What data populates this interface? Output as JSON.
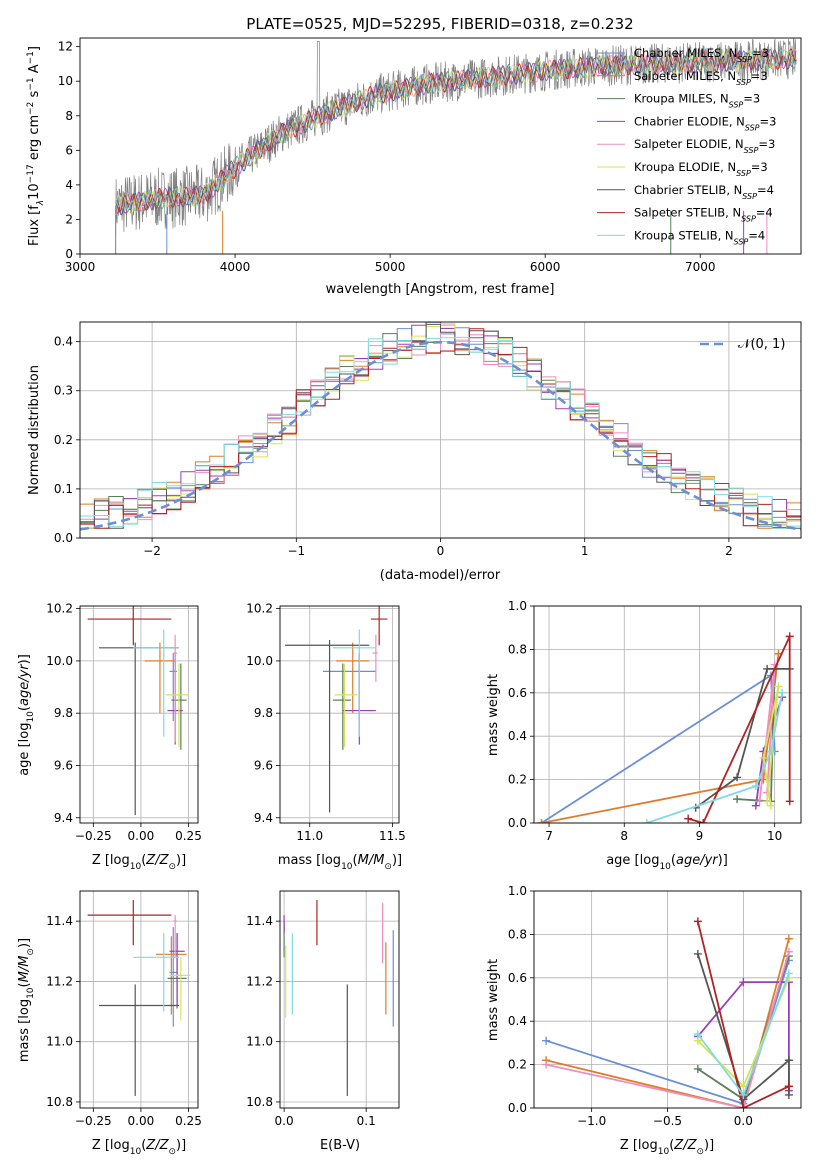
{
  "figure": {
    "title": "PLATE=0525, MJD=52295, FIBERID=0318, z=0.232"
  },
  "colors": [
    "#6a8fd8",
    "#e07b2a",
    "#5b7f5b",
    "#9b3fb4",
    "#ee8ebf",
    "#d6e35a",
    "#555555",
    "#b22222",
    "#7fdbe0"
  ],
  "chart_data": [
    {
      "id": "spectrum",
      "type": "line",
      "title": "PLATE=0525, MJD=52295, FIBERID=0318, z=0.232",
      "xlabel": "wavelength [Angstrom, rest frame]",
      "ylabel": "Flux [f",
      "xlim": [
        3000,
        7650
      ],
      "ylim": [
        0,
        12.5
      ],
      "xticks": [
        "3000",
        "4000",
        "5000",
        "6000",
        "7000"
      ],
      "yticks": [
        "0",
        "2",
        "4",
        "6",
        "8",
        "10",
        "12"
      ],
      "observed_color": "#808080",
      "continuum": {
        "x": [
          3230,
          3500,
          3800,
          4000,
          4300,
          4600,
          4900,
          5200,
          5500,
          5800,
          6100,
          6400,
          6700,
          7000,
          7300,
          7600
        ],
        "y": [
          2.8,
          3.2,
          3.4,
          5.0,
          7.0,
          8.2,
          9.2,
          9.8,
          10.1,
          10.4,
          10.7,
          10.9,
          11.0,
          11.1,
          11.2,
          11.3
        ]
      },
      "legend": [
        {
          "label": "Chabrier MILES, N",
          "sub": "SSP",
          "suffix": "=3"
        },
        {
          "label": "Salpeter MILES, N",
          "sub": "SSP",
          "suffix": "=3"
        },
        {
          "label": "Kroupa MILES, N",
          "sub": "SSP",
          "suffix": "=3"
        },
        {
          "label": "Chabrier ELODIE, N",
          "sub": "SSP",
          "suffix": "=3"
        },
        {
          "label": "Salpeter ELODIE, N",
          "sub": "SSP",
          "suffix": "=3"
        },
        {
          "label": "Kroupa ELODIE, N",
          "sub": "SSP",
          "suffix": "=3"
        },
        {
          "label": "Chabrier STELIB, N",
          "sub": "SSP",
          "suffix": "=4"
        },
        {
          "label": "Salpeter STELIB, N",
          "sub": "SSP",
          "suffix": "=4"
        },
        {
          "label": "Kroupa STELIB, N",
          "sub": "SSP",
          "suffix": "=4"
        }
      ]
    },
    {
      "id": "residuals",
      "type": "histogram",
      "xlabel": "(data-model)/error",
      "ylabel": "Normed distribution",
      "xlim": [
        -2.5,
        2.5
      ],
      "ylim": [
        0,
        0.44
      ],
      "xticks": [
        "−2",
        "−1",
        "0",
        "1",
        "2"
      ],
      "yticks": [
        "0.0",
        "0.1",
        "0.2",
        "0.3",
        "0.4"
      ],
      "bins": 50,
      "legend": "𝒩(0, 1)"
    },
    {
      "id": "age_vs_Z",
      "type": "errorbar",
      "xlabel": "Z [log",
      "ylabel": "age  [log",
      "xlim": [
        -0.32,
        0.3
      ],
      "ylim": [
        9.38,
        10.21
      ],
      "xticks": [
        "−0.25",
        "0.00",
        "0.25"
      ],
      "yticks": [
        "9.4",
        "9.6",
        "9.8",
        "10.0",
        "10.2"
      ],
      "points": [
        {
          "x": 0.17,
          "y": 9.96,
          "xe": [
            0.02,
            0.02
          ],
          "ye": [
            0.19,
            0.07
          ]
        },
        {
          "x": 0.1,
          "y": 10.0,
          "xe": [
            0.08,
            0.08
          ],
          "ye": [
            0.2,
            0.07
          ]
        },
        {
          "x": 0.21,
          "y": 9.85,
          "xe": [
            0.05,
            0.03
          ],
          "ye": [
            0.19,
            0.14
          ]
        },
        {
          "x": 0.18,
          "y": 9.81,
          "xe": [
            0.04,
            0.04
          ],
          "ye": [
            0.13,
            0.22
          ]
        },
        {
          "x": 0.18,
          "y": 10.03,
          "xe": [
            0.01,
            0.01
          ],
          "ye": [
            0.34,
            0.07
          ]
        },
        {
          "x": 0.2,
          "y": 9.87,
          "xe": [
            0.07,
            0.05
          ],
          "ye": [
            0.2,
            0.12
          ]
        },
        {
          "x": -0.03,
          "y": 10.05,
          "xe": [
            0.19,
            0.23
          ],
          "ye": [
            0.64,
            0.02
          ]
        },
        {
          "x": -0.04,
          "y": 10.16,
          "xe": [
            0.24,
            0.2
          ],
          "ye": [
            0.1,
            0.05
          ]
        },
        {
          "x": 0.12,
          "y": 10.05,
          "xe": [
            0.16,
            0.08
          ],
          "ye": [
            0.34,
            0.07
          ]
        }
      ]
    },
    {
      "id": "age_vs_mass",
      "type": "errorbar",
      "xlabel": "mass [log",
      "ylabel": "",
      "xlim": [
        10.82,
        11.54
      ],
      "ylim": [
        9.38,
        10.21
      ],
      "xticks": [
        "11.0",
        "11.5"
      ],
      "yticks": [
        "9.4",
        "9.6",
        "9.8",
        "10.0",
        "10.2"
      ],
      "points": [
        {
          "x": 11.3,
          "y": 9.96,
          "xe": [
            0.22,
            0.1
          ],
          "ye": [
            0.19,
            0.07
          ]
        },
        {
          "x": 11.26,
          "y": 10.0,
          "xe": [
            0.1,
            0.1
          ],
          "ye": [
            0.2,
            0.07
          ]
        },
        {
          "x": 11.2,
          "y": 9.85,
          "xe": [
            0.06,
            0.05
          ],
          "ye": [
            0.19,
            0.14
          ]
        },
        {
          "x": 11.3,
          "y": 9.81,
          "xe": [
            0.1,
            0.1
          ],
          "ye": [
            0.13,
            0.22
          ]
        },
        {
          "x": 11.4,
          "y": 10.03,
          "xe": [
            0.02,
            0.01
          ],
          "ye": [
            0.11,
            0.07
          ]
        },
        {
          "x": 11.21,
          "y": 9.87,
          "xe": [
            0.06,
            0.08
          ],
          "ye": [
            0.2,
            0.12
          ]
        },
        {
          "x": 11.12,
          "y": 10.06,
          "xe": [
            0.27,
            0.24
          ],
          "ye": [
            0.64,
            0.02
          ]
        },
        {
          "x": 11.42,
          "y": 10.16,
          "xe": [
            0.05,
            0.05
          ],
          "ye": [
            0.1,
            0.05
          ]
        },
        {
          "x": 11.3,
          "y": 10.05,
          "xe": [
            0.16,
            0.1
          ],
          "ye": [
            0.34,
            0.07
          ]
        }
      ]
    },
    {
      "id": "weight_vs_age",
      "type": "line",
      "xlabel": "age  [log",
      "ylabel": "mass weight",
      "xlim": [
        6.8,
        10.35
      ],
      "ylim": [
        0,
        1
      ],
      "xticks": [
        "7",
        "8",
        "9",
        "10"
      ],
      "yticks": [
        "0.0",
        "0.2",
        "0.4",
        "0.6",
        "0.8",
        "1.0"
      ],
      "series": [
        {
          "x": [
            6.9,
            9.95,
            10.0
          ],
          "y": [
            0.0,
            0.68,
            0.33
          ]
        },
        {
          "x": [
            6.9,
            9.85,
            10.05
          ],
          "y": [
            0.0,
            0.2,
            0.78
          ]
        },
        {
          "x": [
            9.5,
            9.95,
            10.0
          ],
          "y": [
            0.11,
            0.1,
            0.71
          ]
        },
        {
          "x": [
            9.75,
            9.85,
            10.1
          ],
          "y": [
            0.08,
            0.33,
            0.58
          ]
        },
        {
          "x": [
            9.8,
            10.0,
            9.9
          ],
          "y": [
            0.1,
            0.73,
            0.14
          ]
        },
        {
          "x": [
            9.95,
            9.85,
            10.05,
            9.9
          ],
          "y": [
            0.08,
            0.3,
            0.63,
            0.1
          ]
        },
        {
          "x": [
            8.95,
            9.5,
            9.9,
            10.2
          ],
          "y": [
            0.07,
            0.21,
            0.71,
            0.71
          ]
        },
        {
          "x": [
            8.85,
            9.05,
            10.2,
            10.2
          ],
          "y": [
            0.02,
            0.0,
            0.86,
            0.1
          ]
        },
        {
          "x": [
            8.3,
            9.75,
            9.95,
            10.1
          ],
          "y": [
            0.0,
            0.17,
            0.33,
            0.6
          ]
        }
      ]
    },
    {
      "id": "mass_vs_Z",
      "type": "errorbar",
      "xlabel": "Z [log",
      "ylabel": "mass [log",
      "xlim": [
        -0.32,
        0.3
      ],
      "ylim": [
        10.78,
        11.5
      ],
      "xticks": [
        "−0.25",
        "0.00",
        "0.25"
      ],
      "yticks": [
        "10.8",
        "11.0",
        "11.2",
        "11.4"
      ],
      "points": [
        {
          "x": 0.17,
          "y": 11.23,
          "xe": [
            0.02,
            0.02
          ],
          "ye": [
            0.18,
            0.15
          ]
        },
        {
          "x": 0.16,
          "y": 11.29,
          "xe": [
            0.08,
            0.08
          ],
          "ye": [
            0.2,
            0.06
          ]
        },
        {
          "x": 0.19,
          "y": 11.21,
          "xe": [
            0.05,
            0.05
          ],
          "ye": [
            0.1,
            0.15
          ]
        },
        {
          "x": 0.19,
          "y": 11.3,
          "xe": [
            0.04,
            0.04
          ],
          "ye": [
            0.18,
            0.06
          ]
        },
        {
          "x": 0.18,
          "y": 11.4,
          "xe": [
            0.01,
            0.01
          ],
          "ye": [
            0.12,
            0.02
          ]
        },
        {
          "x": 0.21,
          "y": 11.22,
          "xe": [
            0.06,
            0.05
          ],
          "ye": [
            0.15,
            0.06
          ]
        },
        {
          "x": -0.03,
          "y": 11.12,
          "xe": [
            0.19,
            0.23
          ],
          "ye": [
            0.3,
            0.07
          ]
        },
        {
          "x": -0.04,
          "y": 11.42,
          "xe": [
            0.24,
            0.2
          ],
          "ye": [
            0.1,
            0.05
          ]
        },
        {
          "x": 0.12,
          "y": 11.28,
          "xe": [
            0.16,
            0.08
          ],
          "ye": [
            0.18,
            0.08
          ]
        }
      ]
    },
    {
      "id": "mass_vs_EBV",
      "type": "errorbar",
      "xlabel": "E(B-V)",
      "ylabel": "",
      "xlim": [
        -0.005,
        0.14
      ],
      "ylim": [
        10.78,
        11.5
      ],
      "xticks": [
        "0.0",
        "0.1"
      ],
      "yticks": [
        "10.8",
        "11.0",
        "11.2",
        "11.4"
      ],
      "points": [
        {
          "x": 0.133,
          "y": 11.22,
          "xe": [
            0,
            0
          ],
          "ye": [
            0.17,
            0.15
          ]
        },
        {
          "x": 0.124,
          "y": 11.28,
          "xe": [
            0,
            0
          ],
          "ye": [
            0.19,
            0.05
          ]
        },
        {
          "x": 0.0,
          "y": 11.35,
          "xe": [
            0,
            0
          ],
          "ye": [
            0.07,
            0.05
          ]
        },
        {
          "x": 0.0,
          "y": 11.4,
          "xe": [
            0,
            0
          ],
          "ye": [
            0.04,
            0.02
          ]
        },
        {
          "x": 0.12,
          "y": 11.38,
          "xe": [
            0,
            0
          ],
          "ye": [
            0.12,
            0.08
          ]
        },
        {
          "x": 0.002,
          "y": 11.22,
          "xe": [
            0,
            0
          ],
          "ye": [
            0.14,
            0.1
          ]
        },
        {
          "x": 0.077,
          "y": 11.0,
          "xe": [
            0,
            0
          ],
          "ye": [
            0.18,
            0.19
          ]
        },
        {
          "x": 0.04,
          "y": 11.42,
          "xe": [
            0,
            0
          ],
          "ye": [
            0.1,
            0.05
          ]
        },
        {
          "x": 0.01,
          "y": 11.27,
          "xe": [
            0,
            0
          ],
          "ye": [
            0.18,
            0.09
          ]
        }
      ]
    },
    {
      "id": "weight_vs_Z",
      "type": "line",
      "xlabel": "Z [log",
      "ylabel": "mass weight",
      "xlim": [
        -1.38,
        0.38
      ],
      "ylim": [
        0,
        1
      ],
      "xticks": [
        "−1.0",
        "−0.5",
        "0.0"
      ],
      "yticks": [
        "0.0",
        "0.2",
        "0.4",
        "0.6",
        "0.8",
        "1.0"
      ],
      "series": [
        {
          "x": [
            -1.3,
            0.0,
            0.3
          ],
          "y": [
            0.31,
            0.02,
            0.68
          ]
        },
        {
          "x": [
            -1.3,
            0.0,
            0.3
          ],
          "y": [
            0.22,
            0.0,
            0.78
          ]
        },
        {
          "x": [
            -0.3,
            0.0,
            0.3
          ],
          "y": [
            0.18,
            0.04,
            0.7
          ]
        },
        {
          "x": [
            -0.3,
            0.0,
            0.3,
            0.3
          ],
          "y": [
            0.33,
            0.58,
            0.58,
            0.08
          ]
        },
        {
          "x": [
            -1.3,
            0.0,
            0.3
          ],
          "y": [
            0.2,
            0.0,
            0.72
          ]
        },
        {
          "x": [
            -0.3,
            0.0,
            0.3
          ],
          "y": [
            0.31,
            0.1,
            0.6
          ]
        },
        {
          "x": [
            -0.3,
            0.0,
            0.3,
            0.3
          ],
          "y": [
            0.71,
            0.04,
            0.22,
            0.06
          ]
        },
        {
          "x": [
            -0.3,
            0.0,
            0.3,
            0.3
          ],
          "y": [
            0.86,
            0.0,
            0.1,
            0.1
          ]
        },
        {
          "x": [
            -0.3,
            0.0,
            0.3
          ],
          "y": [
            0.34,
            0.06,
            0.62
          ]
        }
      ]
    }
  ]
}
